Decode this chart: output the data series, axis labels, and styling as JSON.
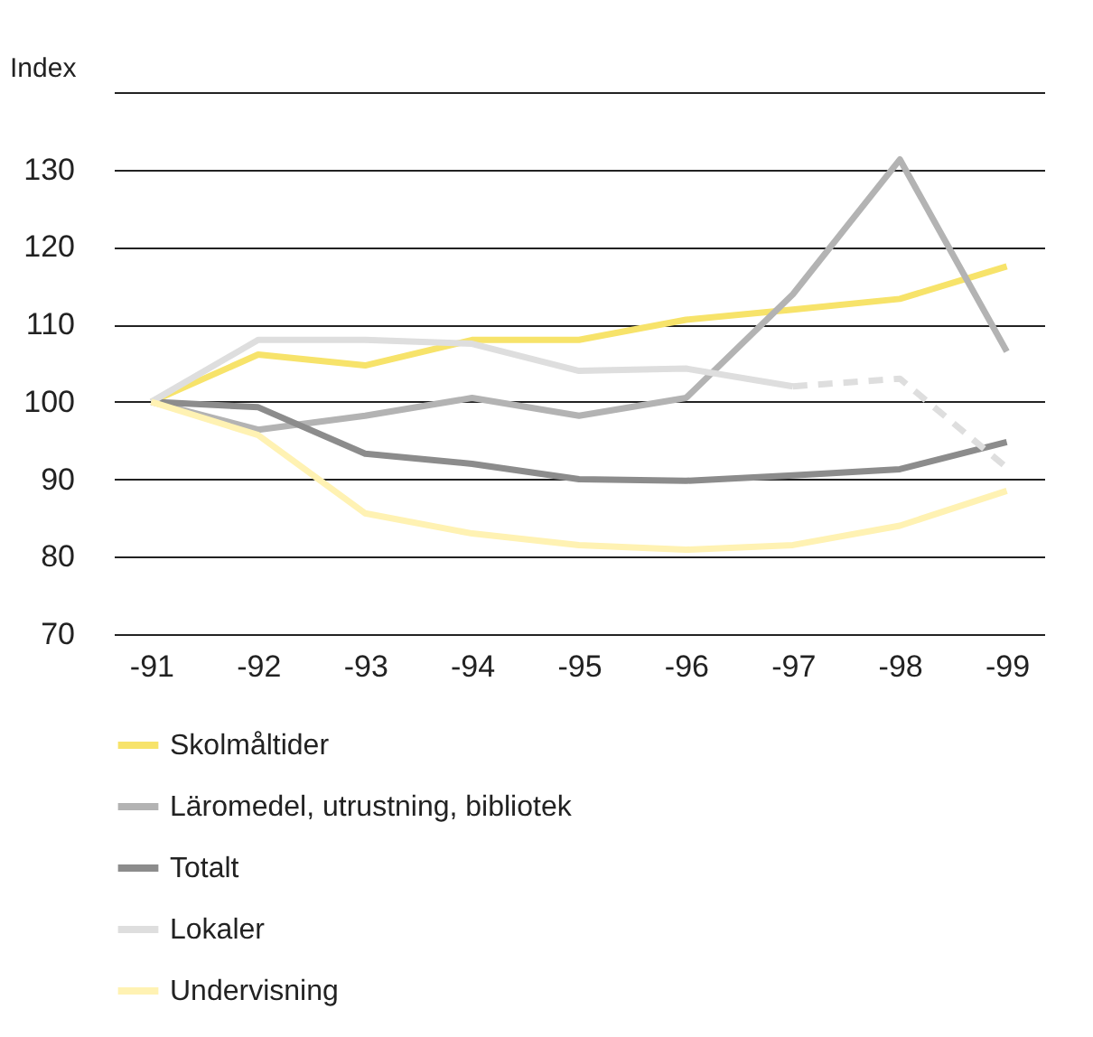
{
  "chart_data": {
    "type": "line",
    "ylabel": "Index",
    "categories": [
      "-91",
      "-92",
      "-93",
      "-94",
      "-95",
      "-96",
      "-97",
      "-98",
      "-99"
    ],
    "ylim": [
      70,
      140
    ],
    "yticks": [
      70,
      80,
      90,
      100,
      110,
      120,
      130,
      {
        "value": 140,
        "label": null
      }
    ],
    "grid": "y",
    "legend": "bottom",
    "line_style": "solid",
    "marker": "none",
    "series": [
      {
        "name": "Skolmåltider",
        "color": "#f7e36a",
        "values": [
          100,
          106.1,
          104.7,
          108,
          108,
          110.6,
          111.9,
          113.3,
          117.5
        ]
      },
      {
        "name": "Läromedel, utrustning, bibliotek",
        "color": "#b3b3b3",
        "values": [
          100,
          96.4,
          98.2,
          100.5,
          98.2,
          100.5,
          113.9,
          131.3,
          106.5
        ]
      },
      {
        "name": "Totalt",
        "color": "#8c8c8c",
        "values": [
          100,
          99.3,
          93.3,
          92,
          90,
          89.8,
          90.5,
          91.3,
          94.8
        ]
      },
      {
        "name": "Lokaler",
        "color": "#dedede",
        "values": [
          100,
          108,
          108,
          107.5,
          104,
          104.3,
          102,
          null,
          null
        ]
      },
      {
        "color": "#dedede",
        "line_style": "dashed",
        "values": [
          null,
          null,
          null,
          null,
          null,
          null,
          102,
          103,
          91.5
        ]
      },
      {
        "name": "Undervisning",
        "color": "#fff2b3",
        "values": [
          100,
          95.7,
          85.6,
          83,
          81.5,
          80.9,
          81.5,
          84,
          88.5
        ]
      }
    ]
  }
}
